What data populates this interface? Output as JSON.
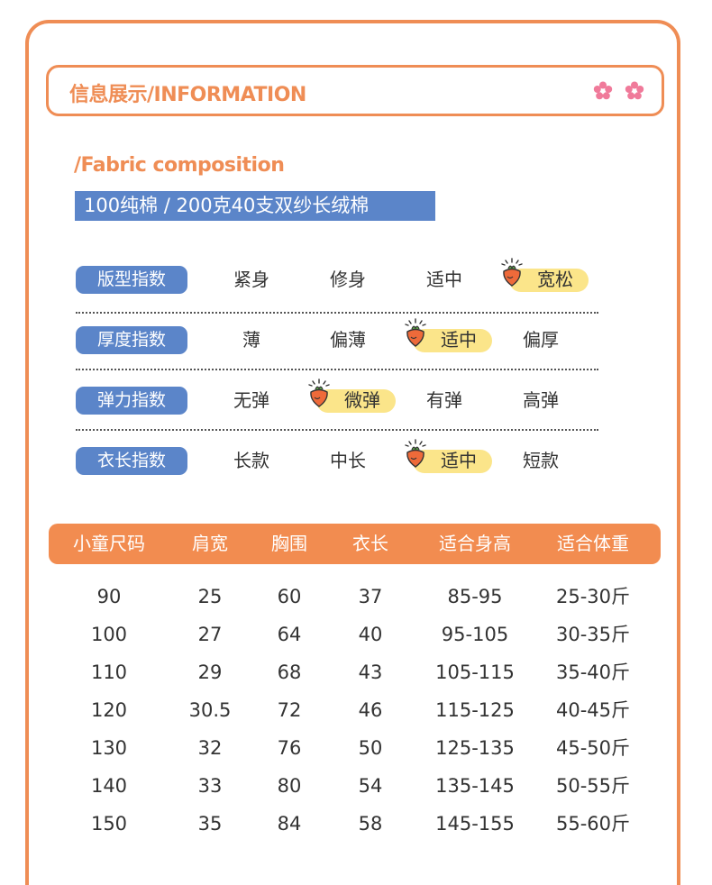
{
  "header": {
    "title": "信息展示/INFORMATION"
  },
  "fabric": {
    "label": "/Fabric composition",
    "composition": "100纯棉 / 200克40支双纱长绒棉"
  },
  "indices": [
    {
      "label": "版型指数",
      "options": [
        "紧身",
        "修身",
        "适中",
        "宽松"
      ],
      "selected": 3
    },
    {
      "label": "厚度指数",
      "options": [
        "薄",
        "偏薄",
        "适中",
        "偏厚"
      ],
      "selected": 2
    },
    {
      "label": "弹力指数",
      "options": [
        "无弹",
        "微弹",
        "有弹",
        "高弹"
      ],
      "selected": 1
    },
    {
      "label": "衣长指数",
      "options": [
        "长款",
        "中长",
        "适中",
        "短款"
      ],
      "selected": 2
    }
  ],
  "size_table": {
    "headers": [
      "小童尺码",
      "肩宽",
      "胸围",
      "衣长",
      "适合身高",
      "适合体重"
    ],
    "rows": [
      [
        "90",
        "25",
        "60",
        "37",
        "85-95",
        "25-30斤"
      ],
      [
        "100",
        "27",
        "64",
        "40",
        "95-105",
        "30-35斤"
      ],
      [
        "110",
        "29",
        "68",
        "43",
        "105-115",
        "35-40斤"
      ],
      [
        "120",
        "30.5",
        "72",
        "46",
        "115-125",
        "40-45斤"
      ],
      [
        "130",
        "32",
        "76",
        "50",
        "125-135",
        "45-50斤"
      ],
      [
        "140",
        "33",
        "80",
        "54",
        "135-145",
        "50-55斤"
      ],
      [
        "150",
        "35",
        "84",
        "58",
        "145-155",
        "55-60斤"
      ]
    ]
  },
  "colors": {
    "accent": "#ef8d55",
    "blue": "#5b85c9",
    "highlight": "#fbe58a",
    "flower": "#f07a9a"
  },
  "icons": {
    "decoration": "flower-icon",
    "selected_marker": "carrot-icon"
  }
}
